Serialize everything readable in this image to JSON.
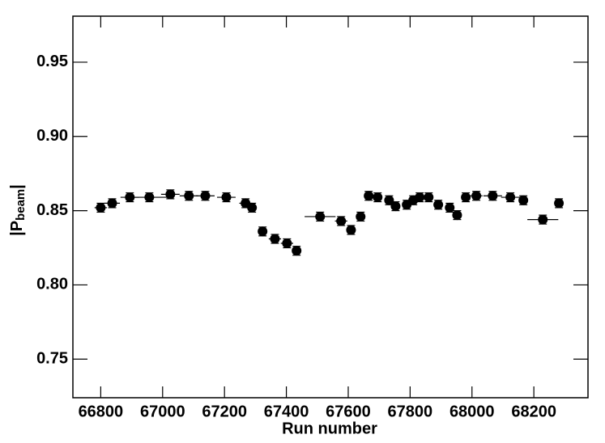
{
  "chart_data": {
    "type": "scatter",
    "xlabel": "Run number",
    "ylabel": "|P",
    "ylabel_sub": "beam",
    "ylabel_end": "|",
    "color": "#000000",
    "xlim": [
      66710,
      68375
    ],
    "ylim": [
      0.724,
      0.981
    ],
    "xticks": [
      66800,
      67000,
      67200,
      67400,
      67600,
      67800,
      68000,
      68200
    ],
    "yticks": [
      {
        "value": 0.75,
        "label": "0.75"
      },
      {
        "value": 0.8,
        "label": "0.80"
      },
      {
        "value": 0.85,
        "label": "0.85"
      },
      {
        "value": 0.9,
        "label": "0.90"
      },
      {
        "value": 0.95,
        "label": "0.95"
      }
    ],
    "series": [
      {
        "name": "P",
        "color": "#000000",
        "x": [
          66800,
          66837,
          66894,
          66957,
          67025,
          67085,
          67138,
          67206,
          67268,
          67289,
          67323,
          67363,
          67402,
          67433,
          67509,
          67577,
          67609,
          67640,
          67666,
          67695,
          67732,
          67753,
          67789,
          67810,
          67831,
          67860,
          67891,
          67928,
          67952,
          67980,
          68014,
          68067,
          68124,
          68166,
          68229,
          68281
        ],
        "xerr": [
          20,
          25,
          30,
          60,
          30,
          30,
          30,
          30,
          20,
          10,
          15,
          20,
          20,
          15,
          50,
          20,
          15,
          15,
          15,
          15,
          10,
          10,
          10,
          10,
          10,
          10,
          15,
          15,
          10,
          15,
          20,
          30,
          30,
          15,
          50,
          15
        ],
        "values": [
          0.852,
          0.855,
          0.859,
          0.859,
          0.861,
          0.86,
          0.86,
          0.859,
          0.855,
          0.852,
          0.836,
          0.831,
          0.828,
          0.823,
          0.846,
          0.843,
          0.837,
          0.846,
          0.86,
          0.859,
          0.857,
          0.853,
          0.854,
          0.857,
          0.859,
          0.859,
          0.854,
          0.852,
          0.847,
          0.859,
          0.86,
          0.86,
          0.859,
          0.857,
          0.844,
          0.855
        ],
        "yerr": [
          0.003,
          0.003,
          0.003,
          0.003,
          0.003,
          0.003,
          0.003,
          0.003,
          0.003,
          0.003,
          0.003,
          0.003,
          0.003,
          0.003,
          0.003,
          0.003,
          0.003,
          0.003,
          0.003,
          0.003,
          0.003,
          0.003,
          0.003,
          0.003,
          0.003,
          0.003,
          0.003,
          0.003,
          0.003,
          0.003,
          0.003,
          0.003,
          0.003,
          0.003,
          0.003,
          0.003
        ]
      }
    ]
  }
}
